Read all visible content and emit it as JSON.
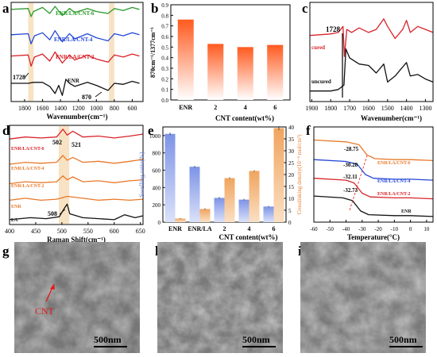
{
  "figure": {
    "panel_letters": [
      "a",
      "b",
      "c",
      "d",
      "e",
      "f",
      "g",
      "h",
      "i"
    ],
    "colors": {
      "black": "#111111",
      "red": "#d8232a",
      "blue": "#2447d6",
      "green": "#2a9a2a",
      "orange": "#e8792a",
      "highlight": "#f7e2c3",
      "bar_b_top": "#ff5a1f",
      "bar_e_blue": "#8ea2e8",
      "bar_e_orange": "#f2b37a"
    }
  },
  "chart_data": [
    {
      "panel": "a",
      "type": "line",
      "xlabel": "Wavenumber(cm⁻¹)",
      "xticks": [
        "1800",
        "1600",
        "1400",
        "1200",
        "1000",
        "800",
        "600"
      ],
      "xlim": [
        1950,
        480
      ],
      "highlight_bands": [
        [
          1760,
          1700
        ],
        [
          860,
          800
        ]
      ],
      "series": [
        {
          "name": "ENR/LA/CNT-6",
          "color": "green",
          "offset": 4.25,
          "pts": [
            [
              1950,
              0
            ],
            [
              1760,
              0.05
            ],
            [
              1728,
              -0.35
            ],
            [
              1700,
              -0.1
            ],
            [
              1600,
              0.1
            ],
            [
              1520,
              -0.2
            ],
            [
              1460,
              0.15
            ],
            [
              1380,
              -0.3
            ],
            [
              1300,
              0.05
            ],
            [
              1240,
              -0.15
            ],
            [
              1100,
              0.05
            ],
            [
              1000,
              -0.1
            ],
            [
              870,
              -0.2
            ],
            [
              800,
              0.05
            ],
            [
              700,
              -0.05
            ],
            [
              600,
              0.1
            ],
            [
              520,
              0
            ]
          ]
        },
        {
          "name": "ENR/LA/CNT-4",
          "color": "blue",
          "offset": 3.0,
          "pts": [
            [
              1950,
              0
            ],
            [
              1760,
              0.05
            ],
            [
              1728,
              -0.45
            ],
            [
              1690,
              -0.05
            ],
            [
              1600,
              0.1
            ],
            [
              1520,
              -0.25
            ],
            [
              1460,
              0.2
            ],
            [
              1380,
              -0.35
            ],
            [
              1300,
              0.05
            ],
            [
              1240,
              -0.2
            ],
            [
              1100,
              0.05
            ],
            [
              1000,
              -0.15
            ],
            [
              870,
              -0.3
            ],
            [
              800,
              0.05
            ],
            [
              700,
              -0.05
            ],
            [
              600,
              0.1
            ],
            [
              520,
              0
            ]
          ]
        },
        {
          "name": "ENR/LA/CNT-2",
          "color": "red",
          "offset": 1.95,
          "pts": [
            [
              1950,
              0
            ],
            [
              1760,
              0.05
            ],
            [
              1728,
              -0.5
            ],
            [
              1690,
              -0.05
            ],
            [
              1600,
              0.1
            ],
            [
              1520,
              -0.25
            ],
            [
              1460,
              0.2
            ],
            [
              1380,
              -0.35
            ],
            [
              1300,
              0.05
            ],
            [
              1240,
              -0.2
            ],
            [
              1100,
              0.05
            ],
            [
              1000,
              -0.15
            ],
            [
              870,
              -0.3
            ],
            [
              800,
              0.05
            ],
            [
              700,
              -0.05
            ],
            [
              600,
              0.1
            ],
            [
              520,
              0
            ]
          ]
        },
        {
          "name": "ENR",
          "color": "black",
          "offset": 0.6,
          "pts": [
            [
              1950,
              0
            ],
            [
              1760,
              0
            ],
            [
              1700,
              0.05
            ],
            [
              1600,
              0.05
            ],
            [
              1520,
              -0.15
            ],
            [
              1460,
              -0.5
            ],
            [
              1420,
              -0.1
            ],
            [
              1380,
              -0.6
            ],
            [
              1340,
              0.2
            ],
            [
              1300,
              0
            ],
            [
              1240,
              -0.15
            ],
            [
              1100,
              0.05
            ],
            [
              1000,
              -0.1
            ],
            [
              870,
              -0.35
            ],
            [
              800,
              0
            ],
            [
              700,
              -0.05
            ],
            [
              600,
              0.1
            ],
            [
              520,
              0
            ]
          ]
        }
      ],
      "annotations": [
        "1728",
        "870"
      ],
      "arrows": [
        [
          1728,
          1.3
        ],
        [
          870,
          0.15
        ]
      ],
      "ylim": [
        -0.3,
        4.6
      ]
    },
    {
      "panel": "b",
      "type": "bar",
      "categories": [
        "ENR",
        "2",
        "4",
        "6"
      ],
      "values": [
        0.76,
        0.53,
        0.5,
        0.52
      ],
      "ylabel": "870cm⁻¹/1377cm⁻¹",
      "xlabel": "CNT content(wt%)",
      "ylim": [
        0.0,
        0.9
      ],
      "yticks": [
        "0.0",
        "0.1",
        "0.2",
        "0.3",
        "0.4",
        "0.5",
        "0.6",
        "0.7",
        "0.8",
        "0.9"
      ]
    },
    {
      "panel": "c",
      "type": "line",
      "xlabel": "Wavenumber(cm⁻¹)",
      "xticks": [
        "1900",
        "1800",
        "1700",
        "1600",
        "1500",
        "1400",
        "1300"
      ],
      "xlim": [
        1910,
        1260
      ],
      "series": [
        {
          "name": "cured",
          "color": "red",
          "offset": 2.1,
          "pts": [
            [
              1910,
              0
            ],
            [
              1800,
              0.05
            ],
            [
              1760,
              0.1
            ],
            [
              1735,
              0.3
            ],
            [
              1728,
              -0.7
            ],
            [
              1715,
              0.2
            ],
            [
              1690,
              0.1
            ],
            [
              1650,
              0.25
            ],
            [
              1600,
              0.1
            ],
            [
              1560,
              0.2
            ],
            [
              1520,
              0.55
            ],
            [
              1500,
              0.3
            ],
            [
              1460,
              -0.1
            ],
            [
              1420,
              0.2
            ],
            [
              1400,
              0.5
            ],
            [
              1380,
              0.1
            ],
            [
              1340,
              0.3
            ],
            [
              1300,
              0.2
            ],
            [
              1260,
              0.1
            ]
          ]
        },
        {
          "name": "uncured",
          "color": "black",
          "offset": 0.25,
          "pts": [
            [
              1910,
              0
            ],
            [
              1800,
              0
            ],
            [
              1760,
              0.05
            ],
            [
              1730,
              0.2
            ],
            [
              1720,
              1.4
            ],
            [
              1700,
              1.1
            ],
            [
              1650,
              0.9
            ],
            [
              1600,
              0.85
            ],
            [
              1560,
              0.6
            ],
            [
              1520,
              0.9
            ],
            [
              1500,
              0.3
            ],
            [
              1460,
              0.5
            ],
            [
              1420,
              0.8
            ],
            [
              1400,
              0.95
            ],
            [
              1380,
              0.5
            ],
            [
              1340,
              0.55
            ],
            [
              1300,
              0.4
            ],
            [
              1260,
              0.3
            ]
          ]
        }
      ],
      "annotations": [
        "1728"
      ],
      "ylim": [
        -0.1,
        3.2
      ]
    },
    {
      "panel": "d",
      "type": "line",
      "xlabel": "Raman Shift(cm⁻¹)",
      "xticks": [
        "400",
        "450",
        "500",
        "550",
        "600",
        "650"
      ],
      "xlim": [
        400,
        655
      ],
      "highlight_bands": [
        [
          494,
          514
        ]
      ],
      "series": [
        {
          "name": "ENR/LA/CNT-6",
          "color": "red",
          "offset": 4.3,
          "pts": [
            [
              400,
              0
            ],
            [
              430,
              0.1
            ],
            [
              460,
              0.05
            ],
            [
              490,
              0.1
            ],
            [
              502,
              0.5
            ],
            [
              510,
              0.2
            ],
            [
              521,
              0.4
            ],
            [
              540,
              0.1
            ],
            [
              570,
              0.15
            ],
            [
              600,
              0.05
            ],
            [
              630,
              0.15
            ],
            [
              655,
              0.25
            ]
          ]
        },
        {
          "name": "ENR/LA/CNT-4",
          "color": "orange",
          "offset": 3.0,
          "pts": [
            [
              400,
              0
            ],
            [
              430,
              0.1
            ],
            [
              460,
              0.05
            ],
            [
              490,
              0.1
            ],
            [
              502,
              0.45
            ],
            [
              510,
              0.2
            ],
            [
              521,
              0.35
            ],
            [
              540,
              0.1
            ],
            [
              570,
              0.15
            ],
            [
              600,
              0.05
            ],
            [
              630,
              0.15
            ],
            [
              655,
              0.25
            ]
          ]
        },
        {
          "name": "ENR/LA/CNT-2",
          "color": "orange",
          "offset": 2.0,
          "pts": [
            [
              400,
              0
            ],
            [
              430,
              0.1
            ],
            [
              460,
              0.05
            ],
            [
              490,
              0.1
            ],
            [
              502,
              0.4
            ],
            [
              510,
              0.2
            ],
            [
              521,
              0.35
            ],
            [
              540,
              0.1
            ],
            [
              570,
              0.15
            ],
            [
              600,
              0.05
            ],
            [
              630,
              0.15
            ],
            [
              655,
              0.2
            ]
          ]
        },
        {
          "name": "ENR",
          "color": "orange",
          "offset": 1.05,
          "pts": [
            [
              400,
              0.1
            ],
            [
              430,
              0.2
            ],
            [
              460,
              0.1
            ],
            [
              490,
              0.15
            ],
            [
              510,
              0.3
            ],
            [
              540,
              0.2
            ],
            [
              570,
              0.1
            ],
            [
              600,
              0.15
            ],
            [
              630,
              0.1
            ],
            [
              655,
              0.15
            ]
          ]
        },
        {
          "name": "LA",
          "color": "black",
          "offset": 0.05,
          "pts": [
            [
              400,
              0.1
            ],
            [
              440,
              0.2
            ],
            [
              470,
              0.15
            ],
            [
              495,
              0.25
            ],
            [
              505,
              0.7
            ],
            [
              510,
              0.9
            ],
            [
              515,
              0.4
            ],
            [
              540,
              0.2
            ],
            [
              570,
              0.15
            ],
            [
              600,
              0.1
            ],
            [
              620,
              0.35
            ],
            [
              640,
              0.2
            ],
            [
              655,
              0.3
            ]
          ]
        }
      ],
      "annotations": [
        "502",
        "521",
        "508"
      ],
      "ylim": [
        -0.1,
        5.0
      ]
    },
    {
      "panel": "e",
      "type": "bar",
      "categories": [
        "ENR",
        "ENR/LA",
        "2",
        "4",
        "6"
      ],
      "series": [
        {
          "values": [
            1020,
            640,
            280,
            260,
            180
          ],
          "errors": [
            15,
            10,
            10,
            8,
            8
          ]
        },
        {
          "values": [
            1.5,
            5.5,
            18.5,
            21.5,
            39.5
          ],
          "errors": [
            0.2,
            0.3,
            0.3,
            0.3,
            0.8
          ]
        }
      ],
      "ylabel": "Swelling ratio(%)",
      "ylabel_right": "Crosslinking density(10⁻⁴ mol/cm³)",
      "xlabel": "CNT content(wt%)",
      "ylim": [
        0,
        1100
      ],
      "ylim_right": [
        0,
        40
      ],
      "yticks": [
        "0",
        "200",
        "400",
        "600",
        "800",
        "1000"
      ],
      "yticks_right": [
        "0",
        "5",
        "10",
        "15",
        "20",
        "25",
        "30",
        "35",
        "40"
      ]
    },
    {
      "panel": "f",
      "type": "line",
      "xlabel": "Temperature(°C)",
      "xticks": [
        "-60",
        "-50",
        "-40",
        "-30",
        "-20",
        "-10",
        "0",
        "10"
      ],
      "xlim": [
        -60,
        14
      ],
      "series": [
        {
          "name": "ENR/LA/CNT-6",
          "color": "orange",
          "offset": 4.1,
          "pts": [
            [
              -60,
              0
            ],
            [
              -40,
              -0.1
            ],
            [
              -32,
              -0.25
            ],
            [
              -27,
              -0.8
            ],
            [
              -22,
              -1.0
            ],
            [
              -10,
              -1.05
            ],
            [
              0,
              -1.05
            ],
            [
              14,
              -1.1
            ]
          ]
        },
        {
          "name": "ENR/LA/CNT-4",
          "color": "blue",
          "offset": 3.05,
          "pts": [
            [
              -60,
              0
            ],
            [
              -40,
              -0.1
            ],
            [
              -33,
              -0.25
            ],
            [
              -28,
              -0.8
            ],
            [
              -23,
              -1.0
            ],
            [
              -10,
              -1.05
            ],
            [
              0,
              -1.05
            ],
            [
              14,
              -1.1
            ]
          ]
        },
        {
          "name": "ENR/LA/CNT-2",
          "color": "red",
          "offset": 2.05,
          "pts": [
            [
              -60,
              0
            ],
            [
              -40,
              -0.1
            ],
            [
              -35,
              -0.25
            ],
            [
              -30,
              -0.8
            ],
            [
              -25,
              -1.0
            ],
            [
              -10,
              -1.05
            ],
            [
              0,
              -1.05
            ],
            [
              14,
              -1.1
            ]
          ]
        },
        {
          "name": "ENR",
          "color": "black",
          "offset": 1.1,
          "pts": [
            [
              -60,
              0
            ],
            [
              -42,
              -0.1
            ],
            [
              -36,
              -0.25
            ],
            [
              -31,
              -0.8
            ],
            [
              -26,
              -1.0
            ],
            [
              -10,
              -1.05
            ],
            [
              0,
              -1.05
            ],
            [
              14,
              -1.1
            ]
          ]
        }
      ],
      "annotations": [
        "-28.75",
        "-30.28",
        "-32.11",
        "-32.73"
      ],
      "ylim": [
        -0.3,
        4.8
      ]
    }
  ],
  "sem": [
    {
      "letter": "g",
      "scale": "500nm",
      "annotation": "CNT"
    },
    {
      "letter": "h",
      "scale": "500nm"
    },
    {
      "letter": "i",
      "scale": "500nm"
    }
  ]
}
